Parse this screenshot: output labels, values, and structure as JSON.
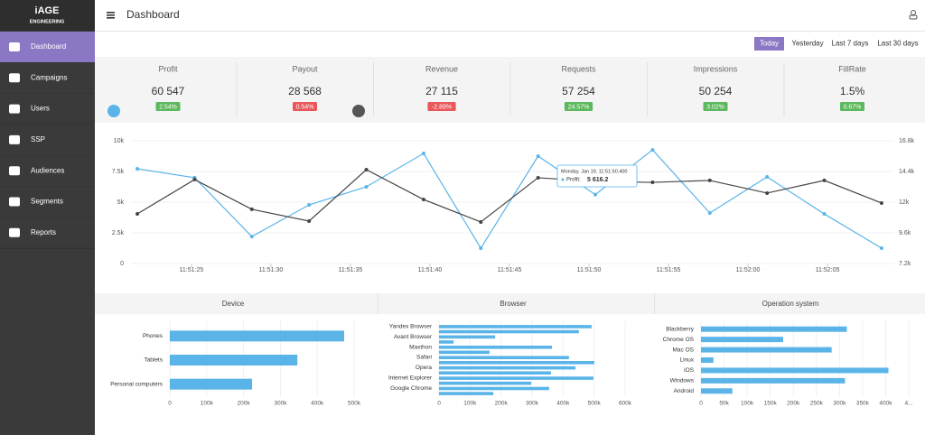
{
  "sidebar": {
    "logo": "iAGE",
    "logo_sub": "ENGINEERING",
    "active": 0,
    "menu": [
      "Dashboard",
      "Campaigns",
      "Users",
      "SSP",
      "Audiences",
      "Segments",
      "Reports"
    ]
  },
  "header": {
    "title": "Dashboard"
  },
  "date_filters": {
    "active": 0,
    "items": [
      "Today",
      "Yesterday",
      "Last 7 days",
      "Last 30 days"
    ]
  },
  "kpis": [
    {
      "title": "Profit",
      "value": "60 547",
      "change": "2.54%",
      "trend": "up"
    },
    {
      "title": "Payout",
      "value": "28 568",
      "change": "0.54%",
      "trend": "down"
    },
    {
      "title": "Revenue",
      "value": "27 115",
      "change": "-2.89%",
      "trend": "down"
    },
    {
      "title": "Requests",
      "value": "57 254",
      "change": "24.57%",
      "trend": "up"
    },
    {
      "title": "Impressions",
      "value": "50 254",
      "change": "3.02%",
      "trend": "up"
    },
    {
      "title": "FillRate",
      "value": "1.5%",
      "change": "0.67%",
      "trend": "up"
    }
  ],
  "chart_data": [
    {
      "type": "line",
      "x": [
        21.6,
        25.2,
        28.8,
        32.4,
        36.0,
        39.6,
        43.2,
        46.8,
        50.4,
        54.0,
        57.6,
        61.2,
        64.8,
        68.4
      ],
      "xlim": [
        21.2,
        69.2
      ],
      "xticks": [
        {
          "value": 25,
          "label": "11:51:25"
        },
        {
          "value": 30,
          "label": "11:51:30"
        },
        {
          "value": 35,
          "label": "11:51:35"
        },
        {
          "value": 40,
          "label": "11:51:40"
        },
        {
          "value": 45,
          "label": "11:51:45"
        },
        {
          "value": 50,
          "label": "11:51:50"
        },
        {
          "value": 55,
          "label": "11:51:55"
        },
        {
          "value": 60,
          "label": "11:52:00"
        },
        {
          "value": 65,
          "label": "11:52:05"
        }
      ],
      "ylim": [
        0,
        10000
      ],
      "yticks": [
        0,
        {
          "value": 2500,
          "label": "2.5k"
        },
        {
          "value": 5000,
          "label": "5k"
        },
        {
          "value": 7500,
          "label": "7.5k"
        },
        {
          "value": 10000,
          "label": "10k"
        }
      ],
      "y2lim": [
        7200,
        16800
      ],
      "y2ticks": [
        {
          "value": 7200,
          "label": "7.2k"
        },
        {
          "value": 9600,
          "label": "9.6k"
        },
        {
          "value": 12000,
          "label": "12k"
        },
        {
          "value": 14400,
          "label": "14.4k"
        },
        {
          "value": 16800,
          "label": "16.8k"
        }
      ],
      "grid": true,
      "series": [
        {
          "name": "Profit",
          "color": "#5ab4e8",
          "values": [
            7720,
            6990,
            2200,
            4780,
            6250,
            8970,
            1250,
            8750,
            5616.2,
            9260,
            4120,
            7060,
            4040,
            1250
          ]
        },
        {
          "color": "#444444",
          "axis": "y2",
          "values": [
            11080,
            13770,
            11440,
            10520,
            14540,
            12210,
            10450,
            13910,
            13620,
            13550,
            13700,
            12710,
            13700,
            11930
          ]
        }
      ],
      "tooltip": {
        "title": "Monday, Jan 19, 11:51:50.400",
        "label": "Profit:",
        "value": "5 616.2"
      }
    },
    {
      "type": "barh",
      "title": "Device",
      "color": "#5ab4e8",
      "categories": [
        "Phones",
        "Tablets",
        "Personal computers"
      ],
      "series": [
        {
          "values": [
            473000,
            346000,
            223000
          ]
        }
      ],
      "xlim": [
        0,
        500000
      ],
      "xticks": [
        0,
        {
          "value": 100000,
          "label": "100k"
        },
        {
          "value": 200000,
          "label": "200k"
        },
        {
          "value": 300000,
          "label": "300k"
        },
        {
          "value": 400000,
          "label": "400k"
        },
        {
          "value": 500000,
          "label": "500k"
        }
      ]
    },
    {
      "type": "barh",
      "title": "Browser",
      "color": "#5ab4e8",
      "categories": [
        "Yandex Browser",
        "Avant Browser",
        "Maxthon",
        "Safari",
        "Opera",
        "Internet Explorer",
        "Google Chrome"
      ],
      "series": [
        {
          "values": [
            492000,
            181000,
            364000,
            419000,
            440000,
            498000,
            355000
          ]
        },
        {
          "values": [
            451000,
            47000,
            163000,
            501000,
            361000,
            297000,
            175000
          ]
        }
      ],
      "xlim": [
        0,
        600000
      ],
      "xticks": [
        0,
        {
          "value": 100000,
          "label": "100k"
        },
        {
          "value": 200000,
          "label": "200k"
        },
        {
          "value": 300000,
          "label": "300k"
        },
        {
          "value": 400000,
          "label": "400k"
        },
        {
          "value": 500000,
          "label": "500k"
        },
        {
          "value": 600000,
          "label": "600k"
        }
      ]
    },
    {
      "type": "barh",
      "title": "Operation system",
      "color": "#5ab4e8",
      "categories": [
        "Blackberry",
        "Chrome OS",
        "Mac OS",
        "Linux",
        "iOS",
        "Windows",
        "Android"
      ],
      "series": [
        {
          "values": [
            316000,
            178000,
            283000,
            27000,
            406000,
            312000,
            68000
          ]
        }
      ],
      "xlim": [
        0,
        450000
      ],
      "xticks": [
        0,
        {
          "value": 50000,
          "label": "50k"
        },
        {
          "value": 100000,
          "label": "100k"
        },
        {
          "value": 150000,
          "label": "150k"
        },
        {
          "value": 200000,
          "label": "200k"
        },
        {
          "value": 250000,
          "label": "250k"
        },
        {
          "value": 300000,
          "label": "300k"
        },
        {
          "value": 350000,
          "label": "350k"
        },
        {
          "value": 400000,
          "label": "400k"
        },
        {
          "value": 450000,
          "label": "4..."
        }
      ]
    }
  ]
}
